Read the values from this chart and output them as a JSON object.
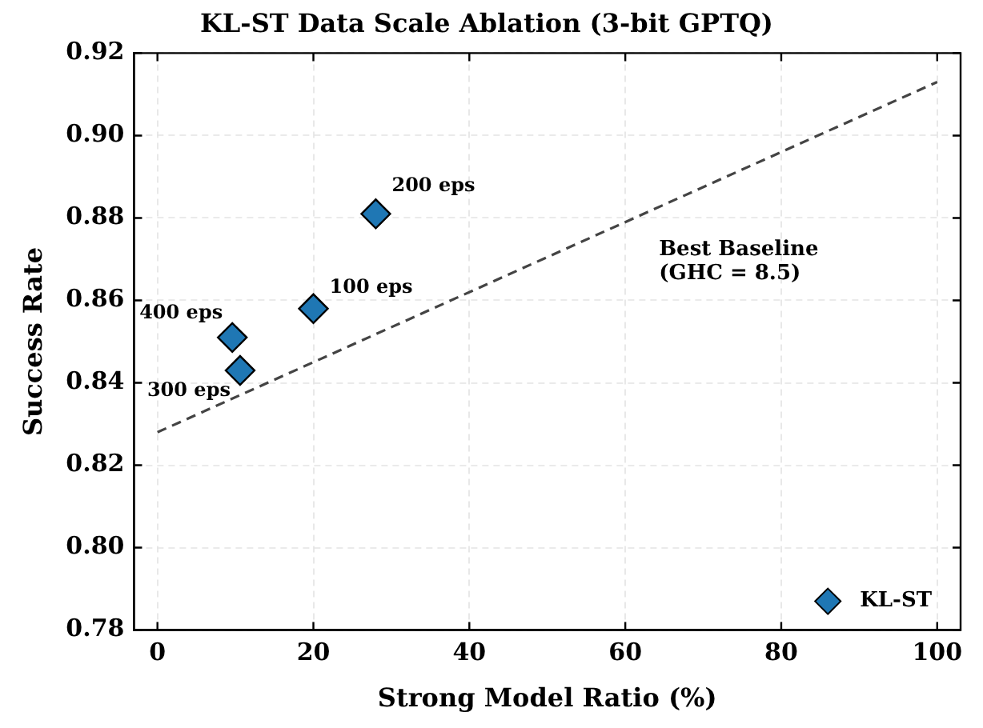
{
  "chart_data": {
    "type": "scatter",
    "title": "KL-ST Data Scale Ablation (3-bit GPTQ)",
    "xlabel": "Strong Model Ratio (%)",
    "ylabel": "Success Rate",
    "xlim": [
      -3,
      103
    ],
    "xticks": [
      0,
      20,
      40,
      60,
      80,
      100
    ],
    "ylim": [
      0.78,
      0.92
    ],
    "yticks": [
      0.78,
      {
        "value": 0.8,
        "label": "0.80"
      },
      0.82,
      0.84,
      0.86,
      0.88,
      {
        "value": 0.9,
        "label": "0.90"
      },
      0.92
    ],
    "grid": true,
    "legend": "bottom right",
    "marker": "diamond",
    "series": [
      {
        "name": "KL-ST",
        "color": "#1f77b4",
        "x": [
          20,
          28,
          10.6,
          9.6
        ],
        "values": [
          0.858,
          0.881,
          0.843,
          0.851
        ]
      },
      {
        "type": "line",
        "color": "#444444",
        "line_style": "dashed",
        "marker": "none",
        "x": [
          0,
          100
        ],
        "values": [
          0.828,
          0.913
        ]
      }
    ],
    "annotations": [
      {
        "text": "100 eps",
        "x": 20,
        "y": 0.858
      },
      {
        "text": "200 eps",
        "x": 28,
        "y": 0.881
      },
      {
        "text": "300 eps",
        "x": 10.6,
        "y": 0.843
      },
      {
        "text": "400 eps",
        "x": 9.6,
        "y": 0.851
      },
      "Best Baseline\n(GHC = 8.5)"
    ]
  }
}
